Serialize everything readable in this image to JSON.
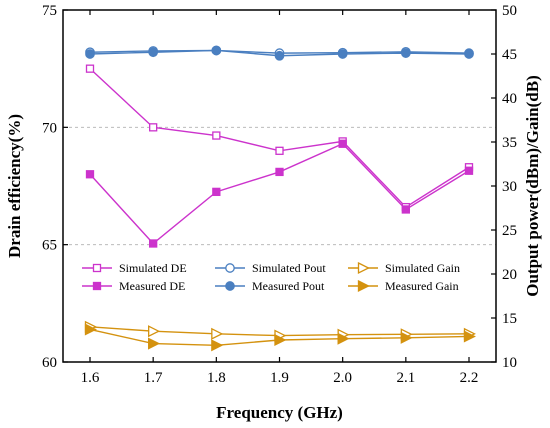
{
  "chart_data": {
    "type": "line",
    "xlabel": "Frequency (GHz)",
    "ylabel_left": "Drain efficiency(%)",
    "ylabel_right": "Output power(dBm)/Gain(dB)",
    "x": [
      "1.6",
      "1.7",
      "1.8",
      "1.9",
      "2.0",
      "2.1",
      "2.2"
    ],
    "ylim_left": [
      60,
      75
    ],
    "yticks_left": [
      "60",
      "65",
      "70",
      "75"
    ],
    "ylim_right": [
      10,
      50
    ],
    "yticks_right": [
      "10",
      "15",
      "20",
      "25",
      "30",
      "35",
      "40",
      "45",
      "50"
    ],
    "grid": true,
    "legend_placement": "bottom",
    "series": [
      {
        "name": "Simulated DE",
        "axis": "left",
        "marker": "square",
        "filled": false,
        "color": "#cc33cc",
        "values": [
          72.5,
          70.0,
          69.65,
          69.0,
          69.4,
          66.6,
          68.3
        ]
      },
      {
        "name": "Measured DE",
        "axis": "left",
        "marker": "square",
        "filled": true,
        "color": "#cc33cc",
        "values": [
          68.0,
          65.05,
          67.25,
          68.1,
          69.3,
          66.5,
          68.15
        ]
      },
      {
        "name": "Simulated Pout",
        "axis": "right",
        "marker": "circle",
        "filled": false,
        "color": "#4a7fc0",
        "values": [
          45.2,
          45.35,
          45.4,
          45.1,
          45.15,
          45.25,
          45.1
        ]
      },
      {
        "name": "Measured Pout",
        "axis": "right",
        "marker": "circle",
        "filled": true,
        "color": "#4a7fc0",
        "values": [
          45.0,
          45.2,
          45.4,
          44.8,
          45.0,
          45.1,
          45.0
        ]
      },
      {
        "name": "Simulated Gain",
        "axis": "right",
        "marker": "triangle-right",
        "filled": false,
        "color": "#d4920f",
        "values": [
          14.0,
          13.5,
          13.2,
          13.0,
          13.1,
          13.15,
          13.2
        ]
      },
      {
        "name": "Measured Gain",
        "axis": "right",
        "marker": "triangle-right",
        "filled": true,
        "color": "#d4920f",
        "values": [
          13.7,
          12.1,
          11.9,
          12.5,
          12.65,
          12.75,
          12.9
        ]
      }
    ]
  }
}
